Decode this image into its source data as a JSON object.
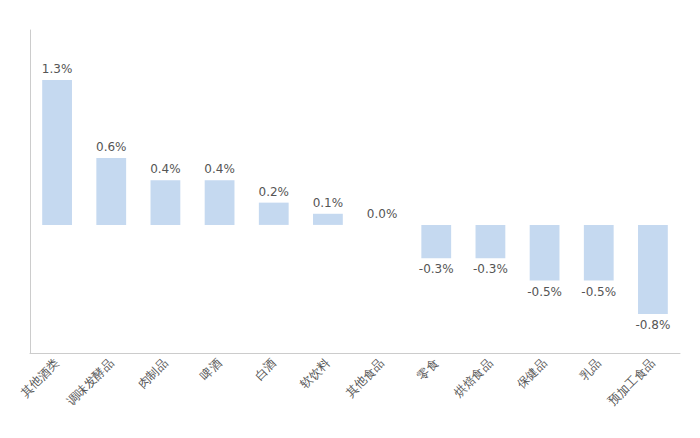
{
  "chart_data": {
    "type": "bar",
    "categories": [
      "其他酒类",
      "调味发酵品",
      "肉制品",
      "啤酒",
      "白酒",
      "软饮料",
      "其他食品",
      "零食",
      "烘焙食品",
      "保健品",
      "乳品",
      "预加工食品"
    ],
    "values": [
      1.3,
      0.6,
      0.4,
      0.4,
      0.2,
      0.1,
      0.0,
      -0.3,
      -0.3,
      -0.5,
      -0.5,
      -0.8
    ],
    "value_labels": [
      "1.3%",
      "0.6%",
      "0.4%",
      "0.4%",
      "0.2%",
      "0.1%",
      "0.0%",
      "-0.3%",
      "-0.3%",
      "-0.5%",
      "-0.5%",
      "-0.8%"
    ],
    "color": "#c5d9f0",
    "ylim": [
      -1.15,
      1.75
    ],
    "grid": false,
    "data_labels": true,
    "tick_labels": "x"
  }
}
